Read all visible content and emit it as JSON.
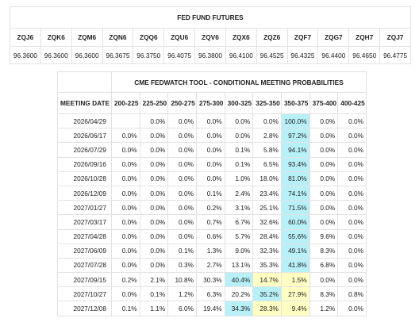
{
  "futures": {
    "title": "FED FUND FUTURES",
    "codes": [
      "ZQJ6",
      "ZQK6",
      "ZQM6",
      "ZQN6",
      "ZQQ6",
      "ZQU6",
      "ZQV6",
      "ZQX6",
      "ZQZ6",
      "ZQF7",
      "ZQG7",
      "ZQH7",
      "ZQJ7"
    ],
    "prices": [
      "96.3600",
      "96.3600",
      "96.3600",
      "96.3675",
      "96.3750",
      "96.4075",
      "96.3800",
      "96.4100",
      "96.4525",
      "96.4325",
      "96.4400",
      "96.4650",
      "96.4775"
    ]
  },
  "probabilities": {
    "title": "CME FEDWATCH TOOL - CONDITIONAL MEETING PROBABILITIES",
    "date_header": "MEETING DATE",
    "columns": [
      "200-225",
      "225-250",
      "250-275",
      "275-300",
      "300-325",
      "325-350",
      "350-375",
      "375-400",
      "400-425"
    ],
    "rows": [
      {
        "date": "2026/04/29",
        "cells": [
          null,
          "0.0%",
          "0.0%",
          "0.0%",
          "0.0%",
          "0.0%",
          "100.0%",
          "0.0%",
          "0.0%"
        ]
      },
      {
        "date": "2026/06/17",
        "cells": [
          "0.0%",
          "0.0%",
          "0.0%",
          "0.0%",
          "0.0%",
          "2.8%",
          "97.2%",
          "0.0%",
          "0.0%"
        ]
      },
      {
        "date": "2026/07/29",
        "cells": [
          "0.0%",
          "0.0%",
          "0.0%",
          "0.0%",
          "0.1%",
          "5.8%",
          "94.1%",
          "0.0%",
          "0.0%"
        ]
      },
      {
        "date": "2026/09/16",
        "cells": [
          "0.0%",
          "0.0%",
          "0.0%",
          "0.0%",
          "0.1%",
          "6.5%",
          "93.4%",
          "0.0%",
          "0.0%"
        ]
      },
      {
        "date": "2026/10/28",
        "cells": [
          "0.0%",
          "0.0%",
          "0.0%",
          "0.0%",
          "1.0%",
          "18.0%",
          "81.0%",
          "0.0%",
          "0.0%"
        ]
      },
      {
        "date": "2026/12/09",
        "cells": [
          "0.0%",
          "0.0%",
          "0.0%",
          "0.1%",
          "2.4%",
          "23.4%",
          "74.1%",
          "0.0%",
          "0.0%"
        ]
      },
      {
        "date": "2027/01/27",
        "cells": [
          "0.0%",
          "0.0%",
          "0.0%",
          "0.2%",
          "3.1%",
          "25.1%",
          "71.5%",
          "0.0%",
          "0.0%"
        ]
      },
      {
        "date": "2027/03/17",
        "cells": [
          "0.0%",
          "0.0%",
          "0.0%",
          "0.7%",
          "6.7%",
          "32.6%",
          "60.0%",
          "0.0%",
          "0.0%"
        ]
      },
      {
        "date": "2027/04/28",
        "cells": [
          "0.0%",
          "0.0%",
          "0.0%",
          "0.6%",
          "5.7%",
          "28.4%",
          "55.6%",
          "9.6%",
          "0.0%"
        ]
      },
      {
        "date": "2027/06/09",
        "cells": [
          "0.0%",
          "0.0%",
          "0.1%",
          "1.3%",
          "9.0%",
          "32.3%",
          "49.1%",
          "8.3%",
          "0.0%"
        ]
      },
      {
        "date": "2027/07/28",
        "cells": [
          "0.0%",
          "0.0%",
          "0.3%",
          "2.7%",
          "13.1%",
          "35.3%",
          "41.8%",
          "6.8%",
          "0.0%"
        ]
      },
      {
        "date": "2027/09/15",
        "cells": [
          "0.2%",
          "2.1%",
          "10.8%",
          "30.3%",
          "40.4%",
          "14.7%",
          "1.5%",
          "0.0%",
          "0.0%"
        ]
      },
      {
        "date": "2027/10/27",
        "cells": [
          "0.0%",
          "0.1%",
          "1.2%",
          "6.3%",
          "20.2%",
          "35.2%",
          "27.9%",
          "8.3%",
          "0.8%"
        ]
      },
      {
        "date": "2027/12/08",
        "cells": [
          "0.1%",
          "1.1%",
          "6.0%",
          "19.4%",
          "34.3%",
          "28.3%",
          "9.4%",
          "1.2%",
          "0.0%"
        ]
      }
    ],
    "highlights": [
      [
        0,
        6,
        "cyan"
      ],
      [
        1,
        6,
        "cyan"
      ],
      [
        2,
        6,
        "cyan"
      ],
      [
        3,
        6,
        "cyan"
      ],
      [
        4,
        6,
        "cyan"
      ],
      [
        5,
        6,
        "cyan"
      ],
      [
        6,
        6,
        "cyan"
      ],
      [
        7,
        6,
        "cyan"
      ],
      [
        8,
        6,
        "cyan"
      ],
      [
        9,
        6,
        "cyan"
      ],
      [
        10,
        6,
        "cyan"
      ],
      [
        11,
        4,
        "cyan"
      ],
      [
        11,
        5,
        "yellow"
      ],
      [
        11,
        6,
        "yellow"
      ],
      [
        12,
        5,
        "cyan"
      ],
      [
        12,
        6,
        "yellow"
      ],
      [
        13,
        4,
        "cyan"
      ],
      [
        13,
        5,
        "yellow"
      ],
      [
        13,
        6,
        "yellow"
      ]
    ]
  }
}
